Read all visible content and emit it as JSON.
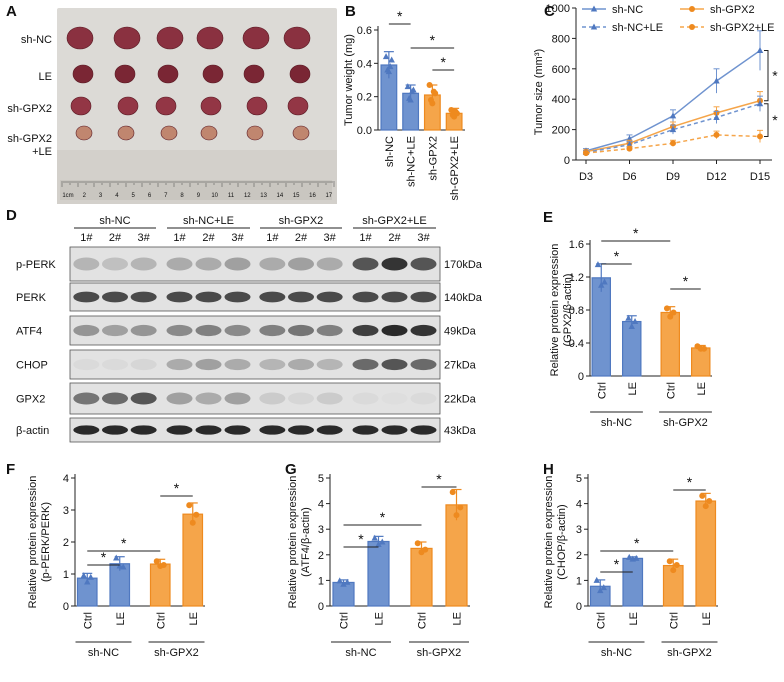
{
  "colors": {
    "blue": "#6f93cf",
    "blue_dark": "#4f78c0",
    "orange": "#f5a54a",
    "orange_dark": "#ee8a1f",
    "axis": "#222222",
    "photo_bg": "#dad8d4"
  },
  "panels": {
    "A": {
      "label": "A",
      "rows": [
        "sh-NC",
        "LE",
        "sh-GPX2",
        "sh-GPX2\n+LE"
      ],
      "ruler_ticks": [
        "1cm",
        "2",
        "3",
        "4",
        "5",
        "6",
        "7",
        "8",
        "9",
        "10",
        "11",
        "12",
        "13",
        "14",
        "15",
        "16",
        "17"
      ]
    },
    "B": {
      "label": "B"
    },
    "C": {
      "label": "C"
    },
    "D": {
      "label": "D",
      "groups": [
        "sh-NC",
        "sh-NC+LE",
        "sh-GPX2",
        "sh-GPX2+LE"
      ],
      "lanes": [
        "1#",
        "2#",
        "3#",
        "1#",
        "2#",
        "3#",
        "1#",
        "2#",
        "3#",
        "1#",
        "2#",
        "3#"
      ],
      "blots": [
        {
          "name": "p-PERK",
          "size": "170kDa"
        },
        {
          "name": "PERK",
          "size": "140kDa"
        },
        {
          "name": "ATF4",
          "size": "49kDa"
        },
        {
          "name": "CHOP",
          "size": "27kDa"
        },
        {
          "name": "GPX2",
          "size": "22kDa"
        },
        {
          "name": "β-actin",
          "size": "43kDa"
        }
      ]
    },
    "E": {
      "label": "E"
    },
    "F": {
      "label": "F"
    },
    "G": {
      "label": "G"
    },
    "H": {
      "label": "H"
    }
  },
  "chart_data": [
    {
      "id": "B",
      "type": "bar",
      "title": "",
      "ylabel": "Tumor weight (mg)",
      "xlabel": "",
      "ylim": [
        0,
        0.6
      ],
      "yticks": [
        "0.0",
        "0.2",
        "0.4",
        "0.6"
      ],
      "categories": [
        "sh-NC",
        "sh-NC+LE",
        "sh-GPX2",
        "sh-GPX2+LE"
      ],
      "values": [
        0.39,
        0.22,
        0.21,
        0.1
      ],
      "errors": [
        0.08,
        0.05,
        0.06,
        0.03
      ],
      "points": [
        [
          0.44,
          0.35,
          0.42,
          0.36,
          0.38
        ],
        [
          0.26,
          0.18,
          0.24,
          0.19,
          0.23
        ],
        [
          0.27,
          0.16,
          0.22,
          0.18,
          0.23
        ],
        [
          0.12,
          0.08,
          0.1,
          0.09,
          0.11
        ]
      ],
      "fills": [
        "blue",
        "blue",
        "orange",
        "orange"
      ],
      "significance": [
        {
          "from": 0,
          "to": 1,
          "label": "*"
        },
        {
          "from": 1,
          "to": 3,
          "label": "*"
        },
        {
          "from": 2,
          "to": 3,
          "label": "*"
        }
      ]
    },
    {
      "id": "C",
      "type": "line",
      "title": "",
      "ylabel": "Tumor size (mm³)",
      "xlabel": "",
      "ylim": [
        0,
        1000
      ],
      "yticks": [
        "0",
        "200",
        "400",
        "600",
        "800",
        "1000"
      ],
      "x": [
        "D3",
        "D6",
        "D9",
        "D12",
        "D15"
      ],
      "series": [
        {
          "name": "sh-NC",
          "color": "blue",
          "dashed": false,
          "marker": "triangle",
          "values": [
            60,
            140,
            290,
            520,
            720
          ],
          "errors": [
            15,
            25,
            40,
            80,
            130
          ]
        },
        {
          "name": "sh-GPX2",
          "color": "orange",
          "dashed": false,
          "marker": "circle",
          "values": [
            55,
            110,
            220,
            310,
            390
          ],
          "errors": [
            10,
            20,
            30,
            40,
            60
          ]
        },
        {
          "name": "sh-NC+LE",
          "color": "blue",
          "dashed": true,
          "marker": "triangle",
          "values": [
            50,
            100,
            200,
            280,
            370
          ],
          "errors": [
            10,
            20,
            30,
            40,
            50
          ]
        },
        {
          "name": "sh-GPX2+LE",
          "color": "orange",
          "dashed": true,
          "marker": "circle",
          "values": [
            45,
            75,
            110,
            165,
            155
          ],
          "errors": [
            10,
            15,
            20,
            25,
            40
          ]
        }
      ],
      "significance": [
        {
          "label": "*"
        },
        {
          "label": "*"
        }
      ]
    },
    {
      "id": "E",
      "type": "bar",
      "title": "",
      "ylabel": "Relative protein expression\n(GPX2/β-actin)",
      "ylim": [
        0,
        1.6
      ],
      "yticks": [
        "0",
        "0.4",
        "0.8",
        "1.2",
        "1.6"
      ],
      "categories": [
        "Ctrl",
        "LE",
        "Ctrl",
        "LE"
      ],
      "groups": [
        "sh-NC",
        "sh-GPX2"
      ],
      "values": [
        1.19,
        0.66,
        0.77,
        0.34
      ],
      "errors": [
        0.17,
        0.07,
        0.07,
        0.03
      ],
      "points": [
        [
          1.35,
          1.1,
          1.14
        ],
        [
          0.7,
          0.6,
          0.66
        ],
        [
          0.82,
          0.72,
          0.77
        ],
        [
          0.36,
          0.33,
          0.33
        ]
      ],
      "fills": [
        "blue",
        "blue",
        "orange",
        "orange"
      ],
      "significance": [
        {
          "from": 0,
          "to": 1,
          "label": "*"
        },
        {
          "from": 0,
          "to": 2,
          "label": "*"
        },
        {
          "from": 2,
          "to": 3,
          "label": "*"
        }
      ]
    },
    {
      "id": "F",
      "type": "bar",
      "title": "",
      "ylabel": "Relative protein expression\n(p-PERK/PERK)",
      "ylim": [
        0,
        4
      ],
      "yticks": [
        "0",
        "1",
        "2",
        "3",
        "4"
      ],
      "categories": [
        "Ctrl",
        "LE",
        "Ctrl",
        "LE"
      ],
      "groups": [
        "sh-NC",
        "sh-GPX2"
      ],
      "values": [
        0.87,
        1.32,
        1.31,
        2.87
      ],
      "errors": [
        0.15,
        0.22,
        0.15,
        0.35
      ],
      "points": [
        [
          0.95,
          0.75,
          0.9
        ],
        [
          1.5,
          1.25,
          1.22
        ],
        [
          1.4,
          1.25,
          1.28
        ],
        [
          3.15,
          2.6,
          2.85
        ]
      ],
      "fills": [
        "blue",
        "blue",
        "orange",
        "orange"
      ],
      "significance": [
        {
          "from": 0,
          "to": 1,
          "label": "*"
        },
        {
          "from": 0,
          "to": 2,
          "label": "*"
        },
        {
          "from": 2,
          "to": 3,
          "label": "*"
        }
      ]
    },
    {
      "id": "G",
      "type": "bar",
      "title": "",
      "ylabel": "Relative protein expression\n(ATF4/β-actin)",
      "ylim": [
        0,
        5
      ],
      "yticks": [
        "0",
        "1",
        "2",
        "3",
        "4",
        "5"
      ],
      "categories": [
        "Ctrl",
        "LE",
        "Ctrl",
        "LE"
      ],
      "groups": [
        "sh-NC",
        "sh-GPX2"
      ],
      "values": [
        0.92,
        2.52,
        2.25,
        3.95
      ],
      "errors": [
        0.1,
        0.2,
        0.25,
        0.6
      ],
      "points": [
        [
          0.98,
          0.85,
          0.93
        ],
        [
          2.65,
          2.4,
          2.5
        ],
        [
          2.45,
          2.1,
          2.2
        ],
        [
          4.45,
          3.55,
          3.85
        ]
      ],
      "fills": [
        "blue",
        "blue",
        "orange",
        "orange"
      ],
      "significance": [
        {
          "from": 0,
          "to": 1,
          "label": "*"
        },
        {
          "from": 0,
          "to": 2,
          "label": "*"
        },
        {
          "from": 2,
          "to": 3,
          "label": "*"
        }
      ]
    },
    {
      "id": "H",
      "type": "bar",
      "title": "",
      "ylabel": "Relative protein expression\n(CHOP/β-actin)",
      "ylim": [
        0,
        5
      ],
      "yticks": [
        "0",
        "1",
        "2",
        "3",
        "4",
        "5"
      ],
      "categories": [
        "Ctrl",
        "LE",
        "Ctrl",
        "LE"
      ],
      "groups": [
        "sh-NC",
        "sh-GPX2"
      ],
      "values": [
        0.77,
        1.86,
        1.58,
        4.1
      ],
      "errors": [
        0.25,
        0.06,
        0.25,
        0.3
      ],
      "points": [
        [
          1.0,
          0.6,
          0.72
        ],
        [
          1.9,
          1.83,
          1.86
        ],
        [
          1.75,
          1.4,
          1.6
        ],
        [
          4.3,
          3.9,
          4.1
        ]
      ],
      "fills": [
        "blue",
        "blue",
        "orange",
        "orange"
      ],
      "significance": [
        {
          "from": 0,
          "to": 1,
          "label": "*"
        },
        {
          "from": 0,
          "to": 2,
          "label": "*"
        },
        {
          "from": 2,
          "to": 3,
          "label": "*"
        }
      ]
    }
  ]
}
